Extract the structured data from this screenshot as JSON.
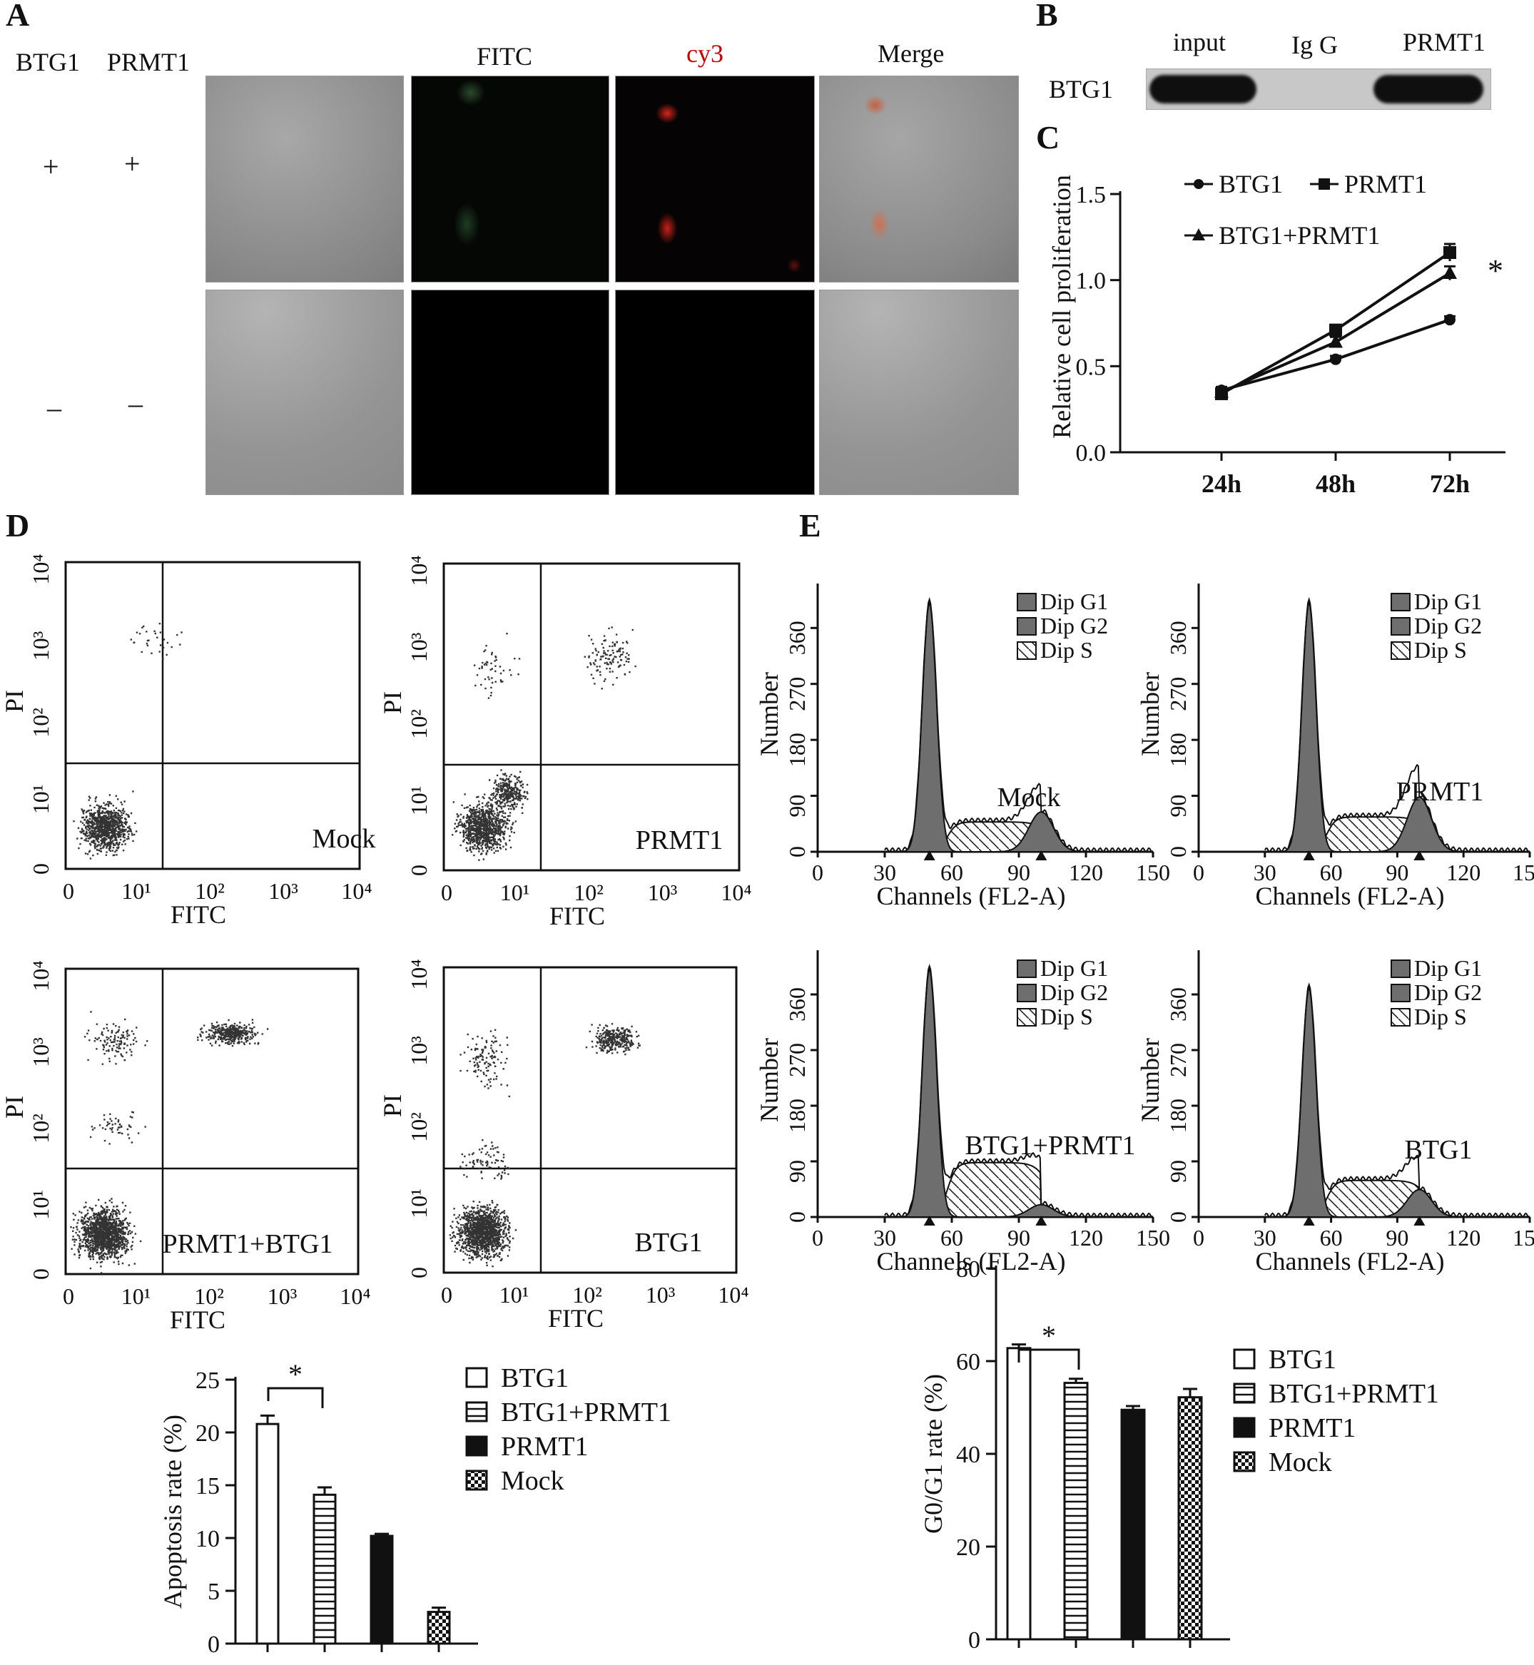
{
  "panel_labels": {
    "A": "A",
    "B": "B",
    "C": "C",
    "D": "D",
    "E": "E"
  },
  "panel_a": {
    "row_headers": [
      "BTG1",
      "PRMT1"
    ],
    "col_headers": [
      "FITC",
      "cy3",
      "Merge"
    ],
    "row1_signs": [
      "+",
      "+"
    ],
    "row2_signs": [
      "–",
      "–"
    ]
  },
  "panel_b": {
    "lanes": [
      "input",
      "Ig G",
      "PRMT1"
    ],
    "row_label": "BTG1"
  },
  "chart_data": [
    {
      "id": "C",
      "type": "line",
      "ylabel": "Relative cell proliferation",
      "categories": [
        "24h",
        "48h",
        "72h"
      ],
      "yticks": [
        "0.0",
        "0.5",
        "1.0",
        "1.5"
      ],
      "ylim": [
        0,
        1.5
      ],
      "legend": [
        "BTG1",
        "PRMT1",
        "BTG1+PRMT1"
      ],
      "annotation": "*",
      "series": [
        {
          "name": "BTG1",
          "marker": "circle",
          "values": [
            0.36,
            0.54,
            0.77
          ],
          "err": [
            0.02,
            0.02,
            0.02
          ]
        },
        {
          "name": "PRMT1",
          "marker": "square",
          "values": [
            0.34,
            0.71,
            1.16
          ],
          "err": [
            0.02,
            0.03,
            0.05
          ]
        },
        {
          "name": "BTG1+PRMT1",
          "marker": "triangle",
          "values": [
            0.35,
            0.64,
            1.04
          ],
          "err": [
            0.02,
            0.03,
            0.04
          ]
        }
      ]
    },
    {
      "id": "D-scatter",
      "type": "scatter",
      "xlabel": "FITC",
      "ylabel": "PI",
      "xtick_labels": [
        "0",
        "10¹",
        "10²",
        "10³",
        "10⁴"
      ],
      "ytick_labels": [
        "0",
        "10¹",
        "10²",
        "10³",
        "10⁴"
      ],
      "panels": [
        "Mock",
        "PRMT1",
        "PRMT1+BTG1",
        "BTG1"
      ]
    },
    {
      "id": "E-histogram",
      "type": "area",
      "xlabel": "Channels (FL2-A)",
      "ylabel": "Number",
      "xticks": [
        "0",
        "30",
        "60",
        "90",
        "120",
        "150"
      ],
      "yticks": [
        "0",
        "90",
        "180",
        "270",
        "360"
      ],
      "legend": [
        "Dip G1",
        "Dip G2",
        "Dip S"
      ],
      "panels": [
        "Mock",
        "PRMT1",
        "BTG1+PRMT1",
        "BTG1"
      ]
    },
    {
      "id": "D-bar",
      "type": "bar",
      "ylabel": "Apoptosis rate (%)",
      "categories": [
        "BTG1",
        "BTG1+PRMT1",
        "PRMT1",
        "Mock"
      ],
      "values": [
        20.8,
        14.1,
        10.2,
        3.0
      ],
      "err": [
        0.8,
        0.7,
        0.2,
        0.4
      ],
      "yticks": [
        "0",
        "5",
        "10",
        "15",
        "20",
        "25"
      ],
      "ylim": [
        0,
        25
      ],
      "annotation": "*"
    },
    {
      "id": "E-bar",
      "type": "bar",
      "ylabel": "G0/G1 rate (%)",
      "categories": [
        "BTG1",
        "BTG1+PRMT1",
        "PRMT1",
        "Mock"
      ],
      "values": [
        62.8,
        55.3,
        49.5,
        52.2
      ],
      "err": [
        0.8,
        0.9,
        0.8,
        1.8
      ],
      "yticks": [
        "0",
        "20",
        "40",
        "60",
        "80"
      ],
      "ylim": [
        0,
        80
      ],
      "annotation": "*"
    }
  ]
}
